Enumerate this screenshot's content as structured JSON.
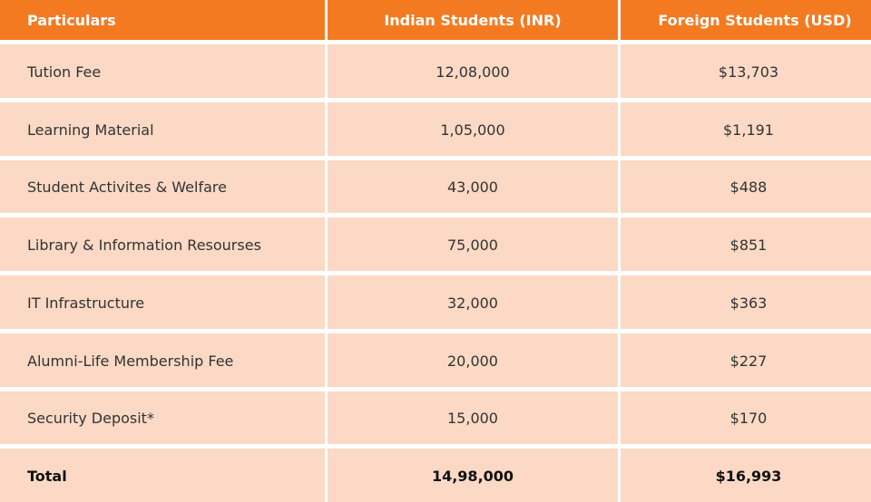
{
  "colors": {
    "header_bg": "#f47a21",
    "cell_bg": "#fbd9c5",
    "header_text": "#ffffff"
  },
  "table": {
    "headers": [
      "Particulars",
      "Indian Students (INR)",
      "Foreign Students (USD)"
    ],
    "rows": [
      {
        "particular": "Tution Fee",
        "inr": "12,08,000",
        "usd": "$13,703"
      },
      {
        "particular": "Learning Material",
        "inr": "1,05,000",
        "usd": "$1,191"
      },
      {
        "particular": "Student Activites & Welfare",
        "inr": "43,000",
        "usd": "$488"
      },
      {
        "particular": "Library & Information Resourses",
        "inr": "75,000",
        "usd": "$851"
      },
      {
        "particular": "IT Infrastructure",
        "inr": "32,000",
        "usd": "$363"
      },
      {
        "particular": "Alumni-Life Membership Fee",
        "inr": "20,000",
        "usd": "$227"
      },
      {
        "particular": "Security Deposit*",
        "inr": "15,000",
        "usd": "$170"
      }
    ],
    "total": {
      "particular": "Total",
      "inr": "14,98,000",
      "usd": "$16,993"
    }
  }
}
